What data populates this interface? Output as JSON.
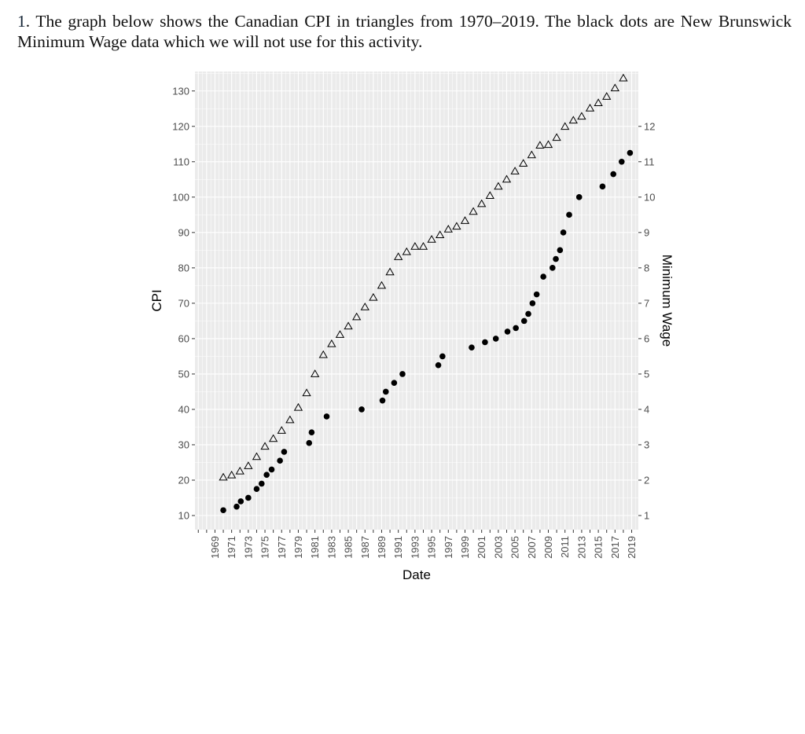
{
  "question": {
    "number": "1",
    "text": ". The graph below shows the Canadian CPI in triangles from 1970–2019.  The black dots are New Brunswick Minimum Wage data which we will not use for this activity."
  },
  "colors": {
    "panel_background": "#ebebeb",
    "gridline": "#ffffff",
    "marker": "#000000"
  },
  "chart_data": {
    "type": "scatter",
    "title": "",
    "xlabel": "Date",
    "ylabel": "CPI",
    "y2label": "Minimum Wage",
    "grid": true,
    "legend": "none",
    "xlim": [
      1966.6,
      2019.8
    ],
    "ylim": [
      6,
      135.5
    ],
    "y2lim": [
      0.6,
      13.55
    ],
    "x_ticks": [
      "1969",
      "1971",
      "1973",
      "1975",
      "1977",
      "1979",
      "1981",
      "1983",
      "1985",
      "1987",
      "1989",
      "1991",
      "1993",
      "1995",
      "1997",
      "1999",
      "2001",
      "2003",
      "2005",
      "2007",
      "2009",
      "2011",
      "2013",
      "2015",
      "2017",
      "2019"
    ],
    "y_ticks": [
      10,
      20,
      30,
      40,
      50,
      60,
      70,
      80,
      90,
      100,
      110,
      120,
      130
    ],
    "y2_ticks": [
      1,
      2,
      3,
      4,
      5,
      6,
      7,
      8,
      9,
      10,
      11,
      12
    ],
    "series": [
      {
        "marker": "open-triangle",
        "x": [
          1970,
          1971,
          1972,
          1973,
          1974,
          1975,
          1976,
          1977,
          1978,
          1979,
          1980,
          1981,
          1982,
          1983,
          1984,
          1985,
          1986,
          1987,
          1988,
          1989,
          1990,
          1991,
          1992,
          1993,
          1994,
          1995,
          1996,
          1997,
          1998,
          1999,
          2000,
          2001,
          2002,
          2003,
          2004,
          2005,
          2006,
          2007,
          2008,
          2009,
          2010,
          2011,
          2012,
          2013,
          2014,
          2015,
          2016,
          2017,
          2018
        ],
        "y": [
          20.8,
          21.4,
          22.5,
          24.0,
          26.6,
          29.5,
          31.7,
          34.0,
          37.0,
          40.5,
          44.6,
          50.0,
          55.4,
          58.5,
          61.1,
          63.5,
          66.1,
          68.9,
          71.6,
          75.0,
          78.8,
          83.1,
          84.5,
          86.0,
          86.0,
          88.0,
          89.3,
          90.9,
          91.7,
          93.3,
          95.9,
          98.1,
          100.4,
          103.0,
          105.0,
          107.3,
          109.5,
          111.9,
          114.6,
          114.8,
          116.8,
          119.9,
          121.7,
          122.8,
          125.1,
          126.6,
          128.4,
          130.8,
          133.6
        ]
      },
      {
        "marker": "filled-circle",
        "x": [
          1970,
          1971.6,
          1972.1,
          1973,
          1974,
          1974.6,
          1975.2,
          1975.8,
          1976.8,
          1977.3,
          1980.3,
          1980.6,
          1982.4,
          1986.6,
          1989.1,
          1989.5,
          1990.5,
          1991.5,
          1995.8,
          1996.3,
          1999.8,
          2001.4,
          2002.7,
          2004.1,
          2005.1,
          2006.1,
          2006.6,
          2007.1,
          2007.6,
          2008.4,
          2009.5,
          2009.9,
          2010.4,
          2010.8,
          2011.5,
          2012.7,
          2015.5,
          2016.8,
          2017.8,
          2018.8
        ],
        "y": [
          1.15,
          1.25,
          1.4,
          1.5,
          1.75,
          1.9,
          2.15,
          2.3,
          2.55,
          2.8,
          3.05,
          3.35,
          3.8,
          4.0,
          4.25,
          4.5,
          4.75,
          5.0,
          5.25,
          5.5,
          5.75,
          5.9,
          6.0,
          6.2,
          6.3,
          6.5,
          6.7,
          7.0,
          7.25,
          7.75,
          8.0,
          8.25,
          8.5,
          9.0,
          9.5,
          10.0,
          10.3,
          10.65,
          11.0,
          11.25
        ]
      }
    ]
  }
}
